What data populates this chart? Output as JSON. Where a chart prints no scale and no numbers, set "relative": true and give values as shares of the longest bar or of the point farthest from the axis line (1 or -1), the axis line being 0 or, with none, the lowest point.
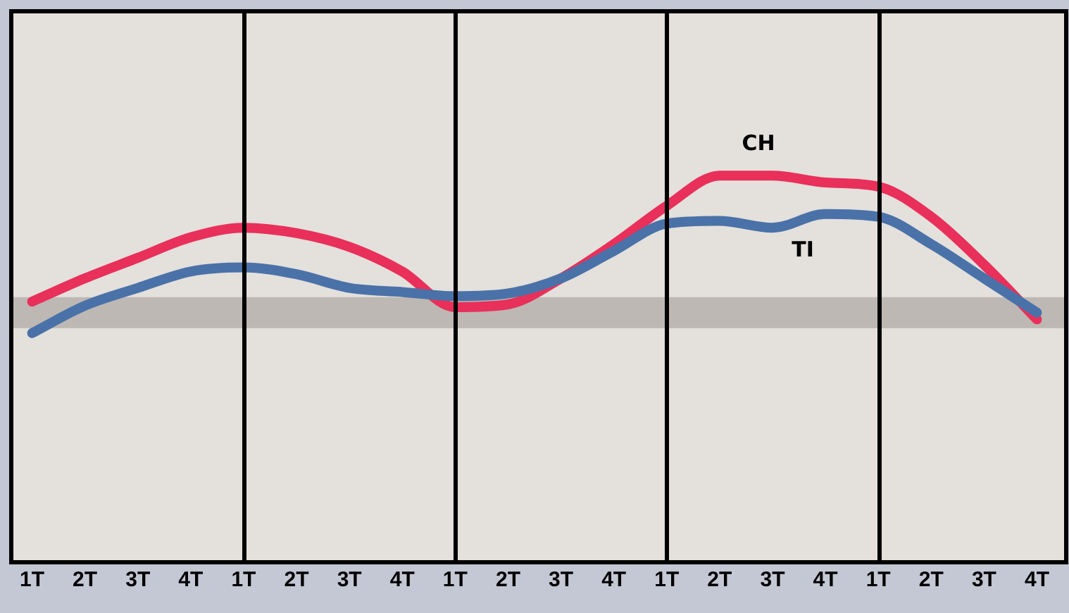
{
  "chart_data": {
    "type": "line",
    "relative": true,
    "categories": [
      "1T",
      "2T",
      "3T",
      "4T",
      "1T",
      "2T",
      "3T",
      "4T",
      "1T",
      "2T",
      "3T",
      "4T",
      "1T",
      "2T",
      "3T",
      "4T",
      "1T",
      "2T",
      "3T",
      "4T"
    ],
    "series": [
      {
        "name": "CH",
        "color": "#e8305a",
        "values": [
          0.08,
          0.25,
          0.4,
          0.55,
          0.62,
          0.58,
          0.48,
          0.3,
          0.04,
          0.06,
          0.25,
          0.5,
          0.78,
          1,
          1,
          0.95,
          0.92,
          0.7,
          0.35,
          -0.05
        ]
      },
      {
        "name": "TI",
        "color": "#4a72a8",
        "values": [
          -0.15,
          0.05,
          0.18,
          0.3,
          0.33,
          0.28,
          0.18,
          0.15,
          0.12,
          0.14,
          0.25,
          0.45,
          0.65,
          0.67,
          0.62,
          0.72,
          0.7,
          0.5,
          0.25,
          0.0
        ]
      }
    ],
    "ref_lines": [
      {
        "axis": "y",
        "value": 0,
        "color": "#bdb8b4"
      }
    ],
    "legend": false,
    "grid": false,
    "marker": "none",
    "line_style": "solid"
  }
}
